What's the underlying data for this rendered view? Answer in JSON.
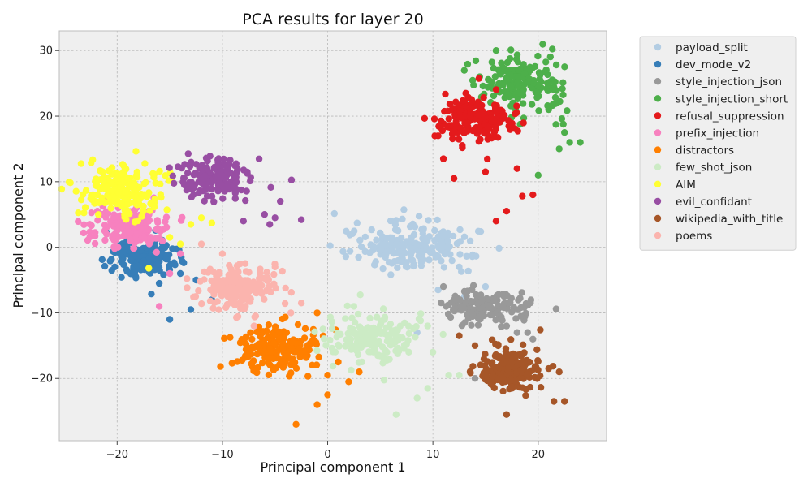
{
  "chart_data": {
    "type": "scatter",
    "title": "PCA results for layer 20",
    "xlabel": "Principal component 1",
    "ylabel": "Principal component 2",
    "xlim": [
      -25.5,
      26.5
    ],
    "ylim": [
      -29.5,
      33
    ],
    "xticks": [
      -20,
      -10,
      0,
      10,
      20
    ],
    "yticks": [
      -20,
      -10,
      0,
      10,
      20,
      30
    ],
    "xtick_labels": [
      "−20",
      "−10",
      "0",
      "10",
      "20"
    ],
    "ytick_labels": [
      "−20",
      "−10",
      "0",
      "10",
      "20",
      "30"
    ],
    "grid": true,
    "legend_position": "outside-right-top",
    "series": [
      {
        "name": "payload_split",
        "color": "#b3cde3",
        "center": [
          8,
          0
        ],
        "spread": [
          3.0,
          1.8
        ],
        "count": 200,
        "outliers": [
          [
            2.8,
            3.7
          ],
          [
            6.5,
            4.1
          ],
          [
            10.5,
            -6.5
          ],
          [
            12.5,
            -3
          ],
          [
            13,
            -7.5
          ],
          [
            8.5,
            -13
          ],
          [
            15,
            -6
          ]
        ]
      },
      {
        "name": "dev_mode_v2",
        "color": "#377eb8",
        "center": [
          -17.5,
          -1.5
        ],
        "spread": [
          1.5,
          1.5
        ],
        "count": 150,
        "outliers": [
          [
            -15,
            -11
          ],
          [
            -13,
            -9.5
          ],
          [
            -11,
            -8
          ],
          [
            -12.5,
            -5
          ],
          [
            -14,
            -4
          ],
          [
            -16,
            -5.5
          ]
        ]
      },
      {
        "name": "style_injection_json",
        "color": "#999999",
        "center": [
          15,
          -9
        ],
        "spread": [
          2.0,
          1.3
        ],
        "count": 150,
        "outliers": [
          [
            11,
            -6
          ],
          [
            12,
            -8
          ],
          [
            14,
            -20
          ],
          [
            18,
            -13
          ],
          [
            19,
            -13
          ],
          [
            19.5,
            -14
          ],
          [
            17,
            -12
          ]
        ]
      },
      {
        "name": "style_injection_short",
        "color": "#4daf4a",
        "center": [
          18.5,
          25
        ],
        "spread": [
          1.8,
          2.3
        ],
        "count": 180,
        "outliers": [
          [
            22,
            15
          ],
          [
            23,
            16
          ],
          [
            24,
            16
          ],
          [
            21,
            21
          ],
          [
            20,
            11
          ],
          [
            22.5,
            17.5
          ],
          [
            16,
            30
          ],
          [
            21.5,
            24
          ]
        ]
      },
      {
        "name": "refusal_suppression",
        "color": "#e41a1c",
        "center": [
          14,
          19.5
        ],
        "spread": [
          2.0,
          1.8
        ],
        "count": 180,
        "outliers": [
          [
            10.5,
            17
          ],
          [
            11,
            13.5
          ],
          [
            12,
            10.5
          ],
          [
            15,
            11.5
          ],
          [
            16,
            4
          ],
          [
            17,
            5.5
          ],
          [
            18.5,
            7.8
          ],
          [
            19.5,
            8
          ],
          [
            18,
            12
          ]
        ]
      },
      {
        "name": "prefix_injection",
        "color": "#f781bf",
        "center": [
          -19,
          3
        ],
        "spread": [
          1.8,
          1.6
        ],
        "count": 200,
        "outliers": [
          [
            -16,
            -9
          ],
          [
            -15,
            -4
          ],
          [
            -21,
            2
          ],
          [
            -14,
            -1
          ],
          [
            -17,
            5.5
          ]
        ]
      },
      {
        "name": "distractors",
        "color": "#ff7f00",
        "center": [
          -4.5,
          -15.5
        ],
        "spread": [
          2.0,
          1.7
        ],
        "count": 200,
        "outliers": [
          [
            -3,
            -27
          ],
          [
            -1,
            -24
          ],
          [
            0,
            -22.5
          ],
          [
            0,
            -19.5
          ],
          [
            2,
            -20.5
          ],
          [
            3,
            -19
          ],
          [
            1,
            -17.5
          ],
          [
            -1,
            -10
          ]
        ]
      },
      {
        "name": "few_shot_json",
        "color": "#ccebc5",
        "center": [
          4.5,
          -14
        ],
        "spread": [
          2.2,
          2.0
        ],
        "count": 170,
        "outliers": [
          [
            6.5,
            -25.5
          ],
          [
            8.5,
            -23
          ],
          [
            9.5,
            -21.5
          ],
          [
            11.5,
            -19.5
          ],
          [
            12.5,
            -19.5
          ],
          [
            10,
            -16
          ],
          [
            9.5,
            -12
          ],
          [
            2.5,
            -9
          ]
        ]
      },
      {
        "name": "AIM",
        "color": "#ffff33",
        "center": [
          -19.5,
          8.5
        ],
        "spread": [
          1.8,
          1.8
        ],
        "count": 200,
        "outliers": [
          [
            -13,
            3.5
          ],
          [
            -12,
            4.5
          ],
          [
            -15,
            1.5
          ],
          [
            -17,
            -3.2
          ],
          [
            -14,
            0.5
          ],
          [
            -11,
            3.7
          ]
        ]
      },
      {
        "name": "evil_confidant",
        "color": "#984ea3",
        "center": [
          -11,
          10.5
        ],
        "spread": [
          1.7,
          1.5
        ],
        "count": 160,
        "outliers": [
          [
            -5,
            4.5
          ],
          [
            -4.5,
            7
          ],
          [
            -6,
            5
          ],
          [
            -2.5,
            4.2
          ],
          [
            -8,
            4
          ],
          [
            -5.5,
            3.5
          ]
        ]
      },
      {
        "name": "wikipedia_with_title",
        "color": "#a65628",
        "center": [
          17.5,
          -18.5
        ],
        "spread": [
          1.5,
          1.6
        ],
        "count": 180,
        "outliers": [
          [
            12.5,
            -13.5
          ],
          [
            14,
            -15
          ],
          [
            17,
            -25.5
          ],
          [
            21.5,
            -23.5
          ],
          [
            22.5,
            -23.5
          ],
          [
            22,
            -19
          ],
          [
            21,
            -18.5
          ]
        ]
      },
      {
        "name": "poems",
        "color": "#fbb4ae",
        "center": [
          -8.5,
          -6
        ],
        "spread": [
          1.8,
          1.6
        ],
        "count": 180,
        "outliers": [
          [
            -12,
            0.5
          ],
          [
            -10,
            -1
          ],
          [
            -3.5,
            -10
          ],
          [
            -2.5,
            -8.5
          ],
          [
            -5,
            -3
          ],
          [
            -7,
            -12
          ]
        ]
      }
    ]
  }
}
